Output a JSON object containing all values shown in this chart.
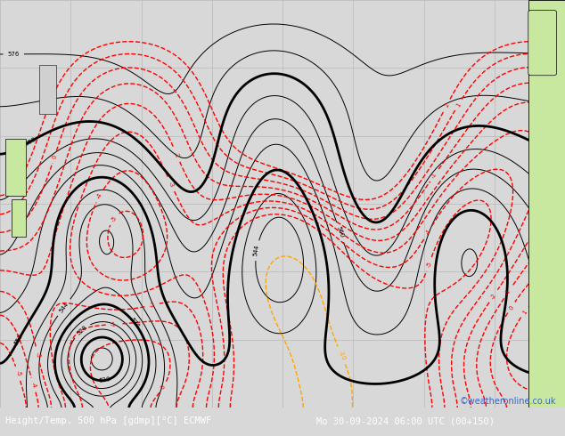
{
  "title": "Height/Temp. 500 hPa [gdmp][°C] ECMWF",
  "subtitle": "Mo 30-09-2024 06:00 UTC (00+150)",
  "credit": "©weatheronline.co.uk",
  "bg_color": "#d8d8d8",
  "map_bg": "#e0e0e0",
  "grid_color": "#b8b8b8",
  "bottom_bar_color": "#000033",
  "bottom_text_color": "#ffffff",
  "title_fontsize": 7.5,
  "credit_fontsize": 7,
  "bottom_bar_height": 0.065
}
